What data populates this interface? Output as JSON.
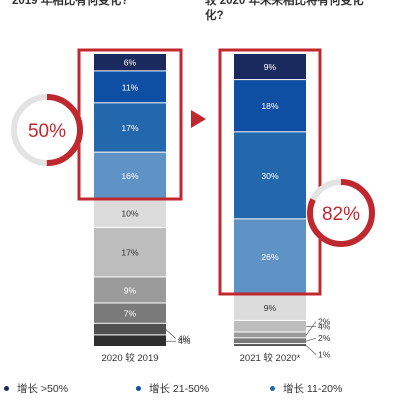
{
  "header": {
    "left": "2019 年相比有何变化?",
    "right_line1": "较 2020 年未来相比将有何变化",
    "right_line2": "化?"
  },
  "chart_data": {
    "type": "bar",
    "stacked": true,
    "categories": [
      "2020 较 2019",
      "2021 较 2020*"
    ],
    "series": [
      {
        "name": "增长 >50%",
        "color": "#1b2a5e",
        "values": [
          6,
          9
        ]
      },
      {
        "name": "增长 21-50%",
        "color": "#0f4fa3",
        "values": [
          11,
          18
        ]
      },
      {
        "name": "增长 11-20%",
        "color": "#2367ad",
        "values": [
          17,
          30
        ]
      },
      {
        "name": "",
        "color": "#5f92c5",
        "values": [
          16,
          26
        ]
      },
      {
        "name": "",
        "color": "#dcdcdc",
        "values": [
          10,
          9
        ]
      },
      {
        "name": "",
        "color": "#bdbdbd",
        "values": [
          17,
          4
        ]
      },
      {
        "name": "",
        "color": "#9b9b9b",
        "values": [
          9,
          2
        ]
      },
      {
        "name": "",
        "color": "#7a7a7a",
        "values": [
          7,
          2
        ]
      },
      {
        "name": "",
        "color": "#505050",
        "values": [
          4,
          1
        ]
      },
      {
        "name": "",
        "color": "#2e2e2e",
        "values": [
          4,
          0
        ]
      }
    ],
    "callouts": [
      {
        "label": "50%",
        "value": 50,
        "highlight_series": [
          0,
          1,
          2,
          3
        ],
        "column": 0
      },
      {
        "label": "82%",
        "value": 82,
        "highlight_series": [
          0,
          1,
          2,
          3
        ],
        "column": 1
      }
    ],
    "ylim": [
      0,
      100
    ]
  },
  "legend": [
    {
      "label": "增长 >50%",
      "color": "#1b2a5e"
    },
    {
      "label": "增长 21-50%",
      "color": "#0f4fa3"
    },
    {
      "label": "增长 11-20%",
      "color": "#2367ad"
    }
  ],
  "colors": {
    "accent": "#c0282f",
    "ring_bg": "#e3e3e3",
    "arrow": "#c0282f"
  }
}
